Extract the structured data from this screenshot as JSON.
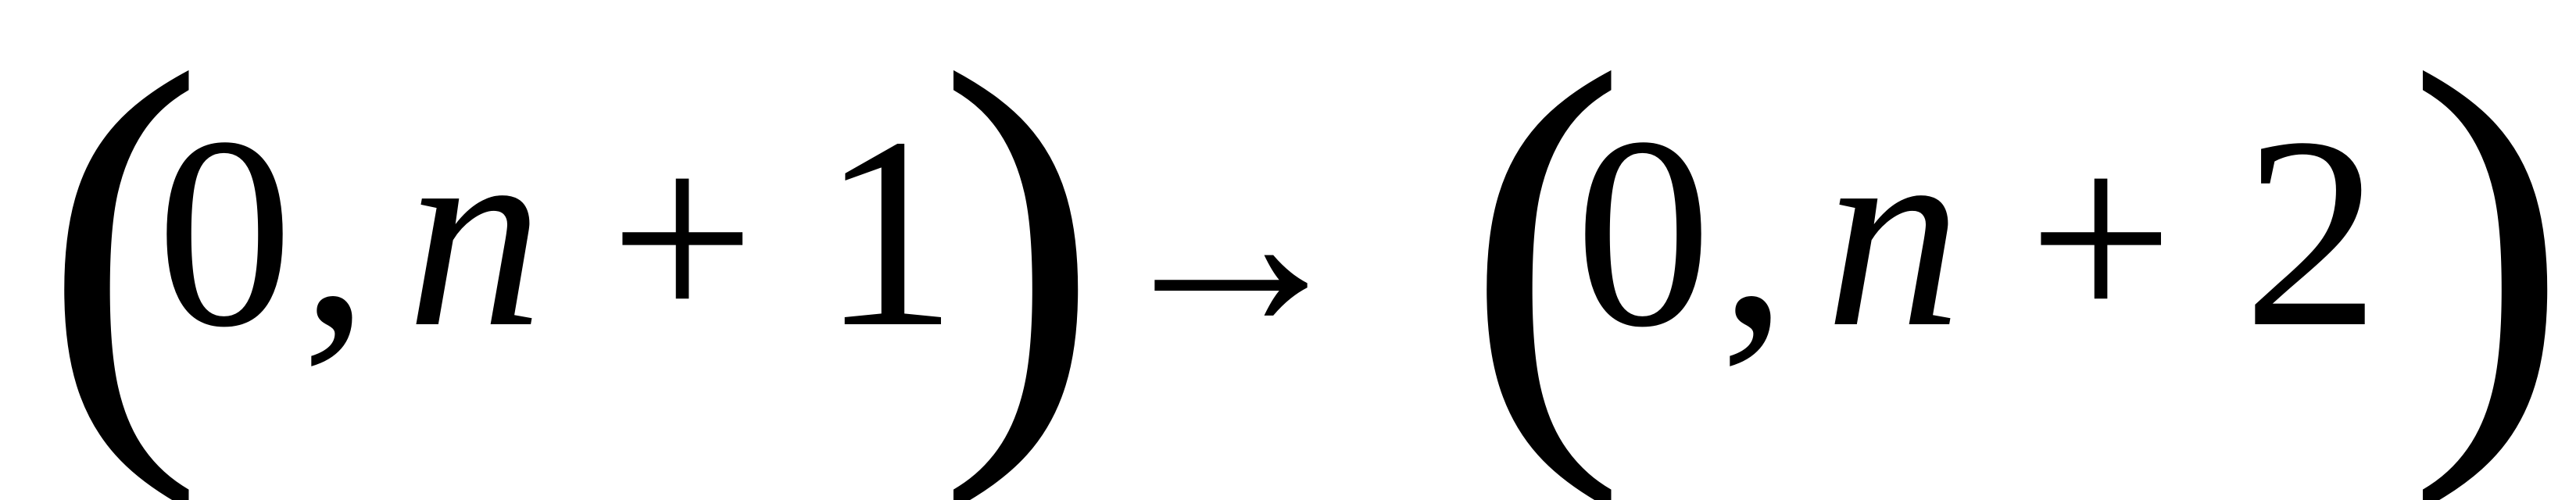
{
  "expression": {
    "left_pair": {
      "open_paren": "(",
      "first": "0",
      "comma": ",",
      "variable": "n",
      "operator": "+",
      "offset": "1",
      "close_paren": ")"
    },
    "arrow": "→",
    "right_pair": {
      "open_paren": "(",
      "first": "0",
      "comma": ",",
      "variable": "n",
      "operator": "+",
      "offset": "2",
      "close_paren": ")"
    }
  }
}
